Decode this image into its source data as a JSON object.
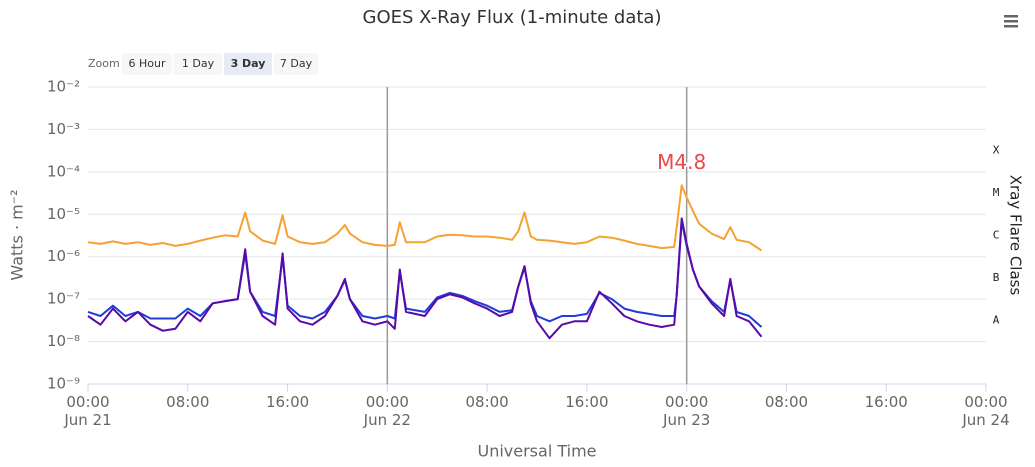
{
  "chart_data": {
    "type": "line",
    "title": "GOES X-Ray Flux (1-minute data)",
    "xlabel": "Universal Time",
    "ylabel": "Watts · m⁻²",
    "y2label": "Xray Flare Class",
    "log_y": true,
    "grid": true,
    "zoom": {
      "label": "Zoom",
      "buttons": [
        "6 Hour",
        "1 Day",
        "3 Day",
        "7 Day"
      ],
      "selected": 2
    },
    "xlim": [
      "Jun 21 00:00",
      "Jun 24 00:00"
    ],
    "xticks": [
      {
        "value": "Jun 21 00:00",
        "label": "00:00 Jun 21"
      },
      {
        "value": "Jun 21 08:00",
        "label": "08:00"
      },
      {
        "value": "Jun 21 16:00",
        "label": "16:00"
      },
      {
        "value": "Jun 22 00:00",
        "label": "00:00 Jun 22"
      },
      {
        "value": "Jun 22 08:00",
        "label": "08:00"
      },
      {
        "value": "Jun 22 16:00",
        "label": "16:00"
      },
      {
        "value": "Jun 23 00:00",
        "label": "00:00 Jun 23"
      },
      {
        "value": "Jun 23 08:00",
        "label": "08:00"
      },
      {
        "value": "Jun 23 16:00",
        "label": "16:00"
      },
      {
        "value": "Jun 24 00:00",
        "label": "00:00 Jun 24"
      }
    ],
    "plot_lines": [
      "Jun 22 00:00",
      "Jun 23 00:00"
    ],
    "ylim": [
      1e-09,
      0.01
    ],
    "yticks": [
      {
        "value": 1e-09,
        "label": "10⁻⁹"
      },
      {
        "value": 1e-08,
        "label": "10⁻⁸"
      },
      {
        "value": 1e-07,
        "label": "10⁻⁷"
      },
      {
        "value": 1e-06,
        "label": "10⁻⁶"
      },
      {
        "value": 1e-05,
        "label": "10⁻⁵"
      },
      {
        "value": 0.0001,
        "label": "10⁻⁴"
      },
      {
        "value": 0.001,
        "label": "10⁻³"
      },
      {
        "value": 0.01,
        "label": "10⁻²"
      }
    ],
    "flare_classes": [
      {
        "value": 1e-08,
        "label": "A"
      },
      {
        "value": 1e-07,
        "label": "B"
      },
      {
        "value": 1e-06,
        "label": "C"
      },
      {
        "value": 1e-05,
        "label": "M"
      },
      {
        "value": 0.0001,
        "label": "X"
      }
    ],
    "annotations": [
      {
        "text": "M4.8",
        "x": "Jun 22 23:36",
        "y": 4.8e-05
      }
    ],
    "x": [
      "Jun 21 00:00",
      "Jun 21 01:00",
      "Jun 21 02:00",
      "Jun 21 03:00",
      "Jun 21 04:00",
      "Jun 21 05:00",
      "Jun 21 06:00",
      "Jun 21 07:00",
      "Jun 21 08:00",
      "Jun 21 09:00",
      "Jun 21 10:00",
      "Jun 21 11:00",
      "Jun 21 12:00",
      "Jun 21 12:36",
      "Jun 21 13:00",
      "Jun 21 14:00",
      "Jun 21 15:00",
      "Jun 21 15:36",
      "Jun 21 16:00",
      "Jun 21 17:00",
      "Jun 21 18:00",
      "Jun 21 19:00",
      "Jun 21 20:00",
      "Jun 21 20:36",
      "Jun 21 21:00",
      "Jun 21 22:00",
      "Jun 21 23:00",
      "Jun 22 00:00",
      "Jun 22 00:36",
      "Jun 22 01:00",
      "Jun 22 01:30",
      "Jun 22 03:00",
      "Jun 22 04:00",
      "Jun 22 05:00",
      "Jun 22 06:00",
      "Jun 22 07:00",
      "Jun 22 08:00",
      "Jun 22 09:00",
      "Jun 22 10:00",
      "Jun 22 10:30",
      "Jun 22 11:00",
      "Jun 22 11:30",
      "Jun 22 12:00",
      "Jun 22 13:00",
      "Jun 22 14:00",
      "Jun 22 15:00",
      "Jun 22 16:00",
      "Jun 22 17:00",
      "Jun 22 18:00",
      "Jun 22 19:00",
      "Jun 22 20:00",
      "Jun 22 21:00",
      "Jun 22 22:00",
      "Jun 22 23:00",
      "Jun 22 23:12",
      "Jun 22 23:36",
      "Jun 23 00:00",
      "Jun 23 00:30",
      "Jun 23 01:00",
      "Jun 23 02:00",
      "Jun 23 03:00",
      "Jun 23 03:30",
      "Jun 23 04:00",
      "Jun 23 05:00",
      "Jun 23 06:00"
    ],
    "series": [
      {
        "color": "#f5a233",
        "values": [
          2.2e-06,
          2e-06,
          2.3e-06,
          2e-06,
          2.2e-06,
          1.9e-06,
          2.1e-06,
          1.8e-06,
          2e-06,
          2.4e-06,
          2.8e-06,
          3.2e-06,
          3e-06,
          1.1e-05,
          4e-06,
          2.4e-06,
          2e-06,
          9.5e-06,
          3e-06,
          2.2e-06,
          2e-06,
          2.2e-06,
          3.5e-06,
          5.6e-06,
          3.5e-06,
          2.2e-06,
          1.9e-06,
          1.8e-06,
          1.9e-06,
          6.5e-06,
          2.2e-06,
          2.2e-06,
          3e-06,
          3.3e-06,
          3.2e-06,
          3e-06,
          3e-06,
          2.8e-06,
          2.5e-06,
          4e-06,
          1.1e-05,
          3e-06,
          2.5e-06,
          2.4e-06,
          2.2e-06,
          2e-06,
          2.2e-06,
          3e-06,
          2.8e-06,
          2.4e-06,
          2e-06,
          1.8e-06,
          1.6e-06,
          1.7e-06,
          5e-06,
          4.8e-05,
          2.5e-05,
          1.2e-05,
          6e-06,
          3.5e-06,
          2.6e-06,
          5e-06,
          2.5e-06,
          2.2e-06,
          1.4e-06
        ]
      },
      {
        "color": "#1f3ddb",
        "values": [
          5e-08,
          4e-08,
          7e-08,
          4e-08,
          5e-08,
          3.5e-08,
          3.5e-08,
          3.5e-08,
          6e-08,
          4e-08,
          8e-08,
          9e-08,
          1e-07,
          1.2e-06,
          1.5e-07,
          5e-08,
          4e-08,
          1e-06,
          7e-08,
          4e-08,
          3.5e-08,
          5e-08,
          1.2e-07,
          2.8e-07,
          1e-07,
          4e-08,
          3.5e-08,
          4e-08,
          3.5e-08,
          4.5e-07,
          6e-08,
          5e-08,
          1.1e-07,
          1.4e-07,
          1.2e-07,
          9e-08,
          7e-08,
          5e-08,
          5.5e-08,
          2e-07,
          5.5e-07,
          9e-08,
          4e-08,
          3e-08,
          4e-08,
          4e-08,
          4.5e-08,
          1.4e-07,
          1e-07,
          6e-08,
          5e-08,
          4.5e-08,
          4e-08,
          4e-08,
          1.2e-07,
          7e-06,
          1.8e-06,
          5e-07,
          2e-07,
          9e-08,
          5e-08,
          2.8e-07,
          5e-08,
          4e-08,
          2.2e-08
        ]
      },
      {
        "color": "#5a0aa6",
        "values": [
          4e-08,
          2.5e-08,
          6e-08,
          3e-08,
          5e-08,
          2.5e-08,
          1.8e-08,
          2e-08,
          5e-08,
          3e-08,
          8e-08,
          9e-08,
          1e-07,
          1.5e-06,
          1.5e-07,
          4e-08,
          2.5e-08,
          1.2e-06,
          6e-08,
          3e-08,
          2.5e-08,
          4e-08,
          1.2e-07,
          3e-07,
          1e-07,
          3e-08,
          2.5e-08,
          3e-08,
          2e-08,
          5e-07,
          5e-08,
          4e-08,
          1e-07,
          1.3e-07,
          1.1e-07,
          8e-08,
          6e-08,
          4e-08,
          5e-08,
          2e-07,
          6e-07,
          8e-08,
          3e-08,
          1.2e-08,
          2.5e-08,
          3e-08,
          3e-08,
          1.5e-07,
          8e-08,
          4e-08,
          3e-08,
          2.5e-08,
          2.2e-08,
          2.5e-08,
          1.3e-07,
          8e-06,
          2e-06,
          5e-07,
          2e-07,
          8e-08,
          4e-08,
          3e-07,
          4e-08,
          3e-08,
          1.3e-08
        ]
      }
    ]
  }
}
